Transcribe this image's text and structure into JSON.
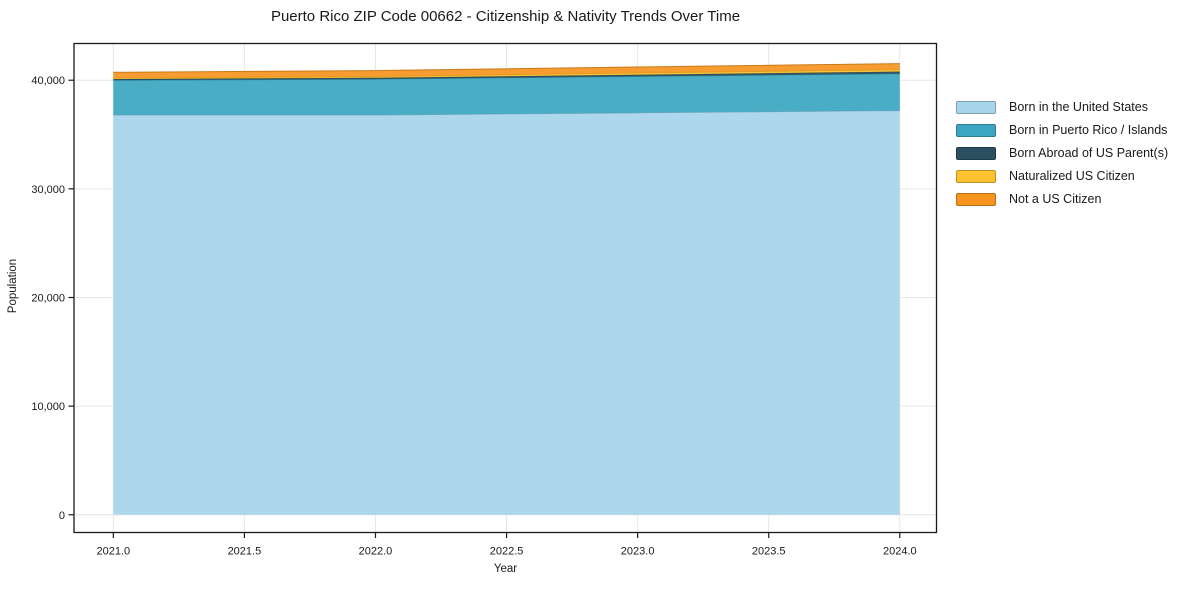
{
  "chart_data": {
    "type": "area",
    "stacked": true,
    "title": "Puerto Rico ZIP Code 00662 - Citizenship & Nativity Trends Over Time",
    "xlabel": "Year",
    "ylabel": "Population",
    "grid": true,
    "legend_position": "outside-right",
    "x": [
      2021,
      2022,
      2023,
      2024
    ],
    "x_ticks": [
      2021.0,
      2021.5,
      2022.0,
      2022.5,
      2023.0,
      2023.5,
      2024.0
    ],
    "x_tick_labels": [
      "2021.0",
      "2021.5",
      "2022.0",
      "2022.5",
      "2023.0",
      "2023.5",
      "2024.0"
    ],
    "y_ticks": [
      0,
      10000,
      20000,
      30000,
      40000
    ],
    "y_tick_labels": [
      "0",
      "10,000",
      "20,000",
      "30,000",
      "40,000"
    ],
    "xlim": [
      2020.85,
      2024.14
    ],
    "ylim": [
      -1630,
      43380
    ],
    "series": [
      {
        "name": "Born in the United States",
        "color": "#a6d4ea",
        "values": [
          36800,
          36800,
          37000,
          37200
        ]
      },
      {
        "name": "Born in Puerto Rico / Islands",
        "color": "#3ba6c1",
        "values": [
          3200,
          3300,
          3350,
          3400
        ]
      },
      {
        "name": "Born Abroad of US Parent(s)",
        "color": "#2b4e60",
        "values": [
          100,
          120,
          160,
          190
        ]
      },
      {
        "name": "Naturalized US Citizen",
        "color": "#fcc22f",
        "values": [
          100,
          130,
          160,
          190
        ]
      },
      {
        "name": "Not a US Citizen",
        "color": "#f6941e",
        "values": [
          530,
          540,
          550,
          550
        ]
      }
    ]
  }
}
